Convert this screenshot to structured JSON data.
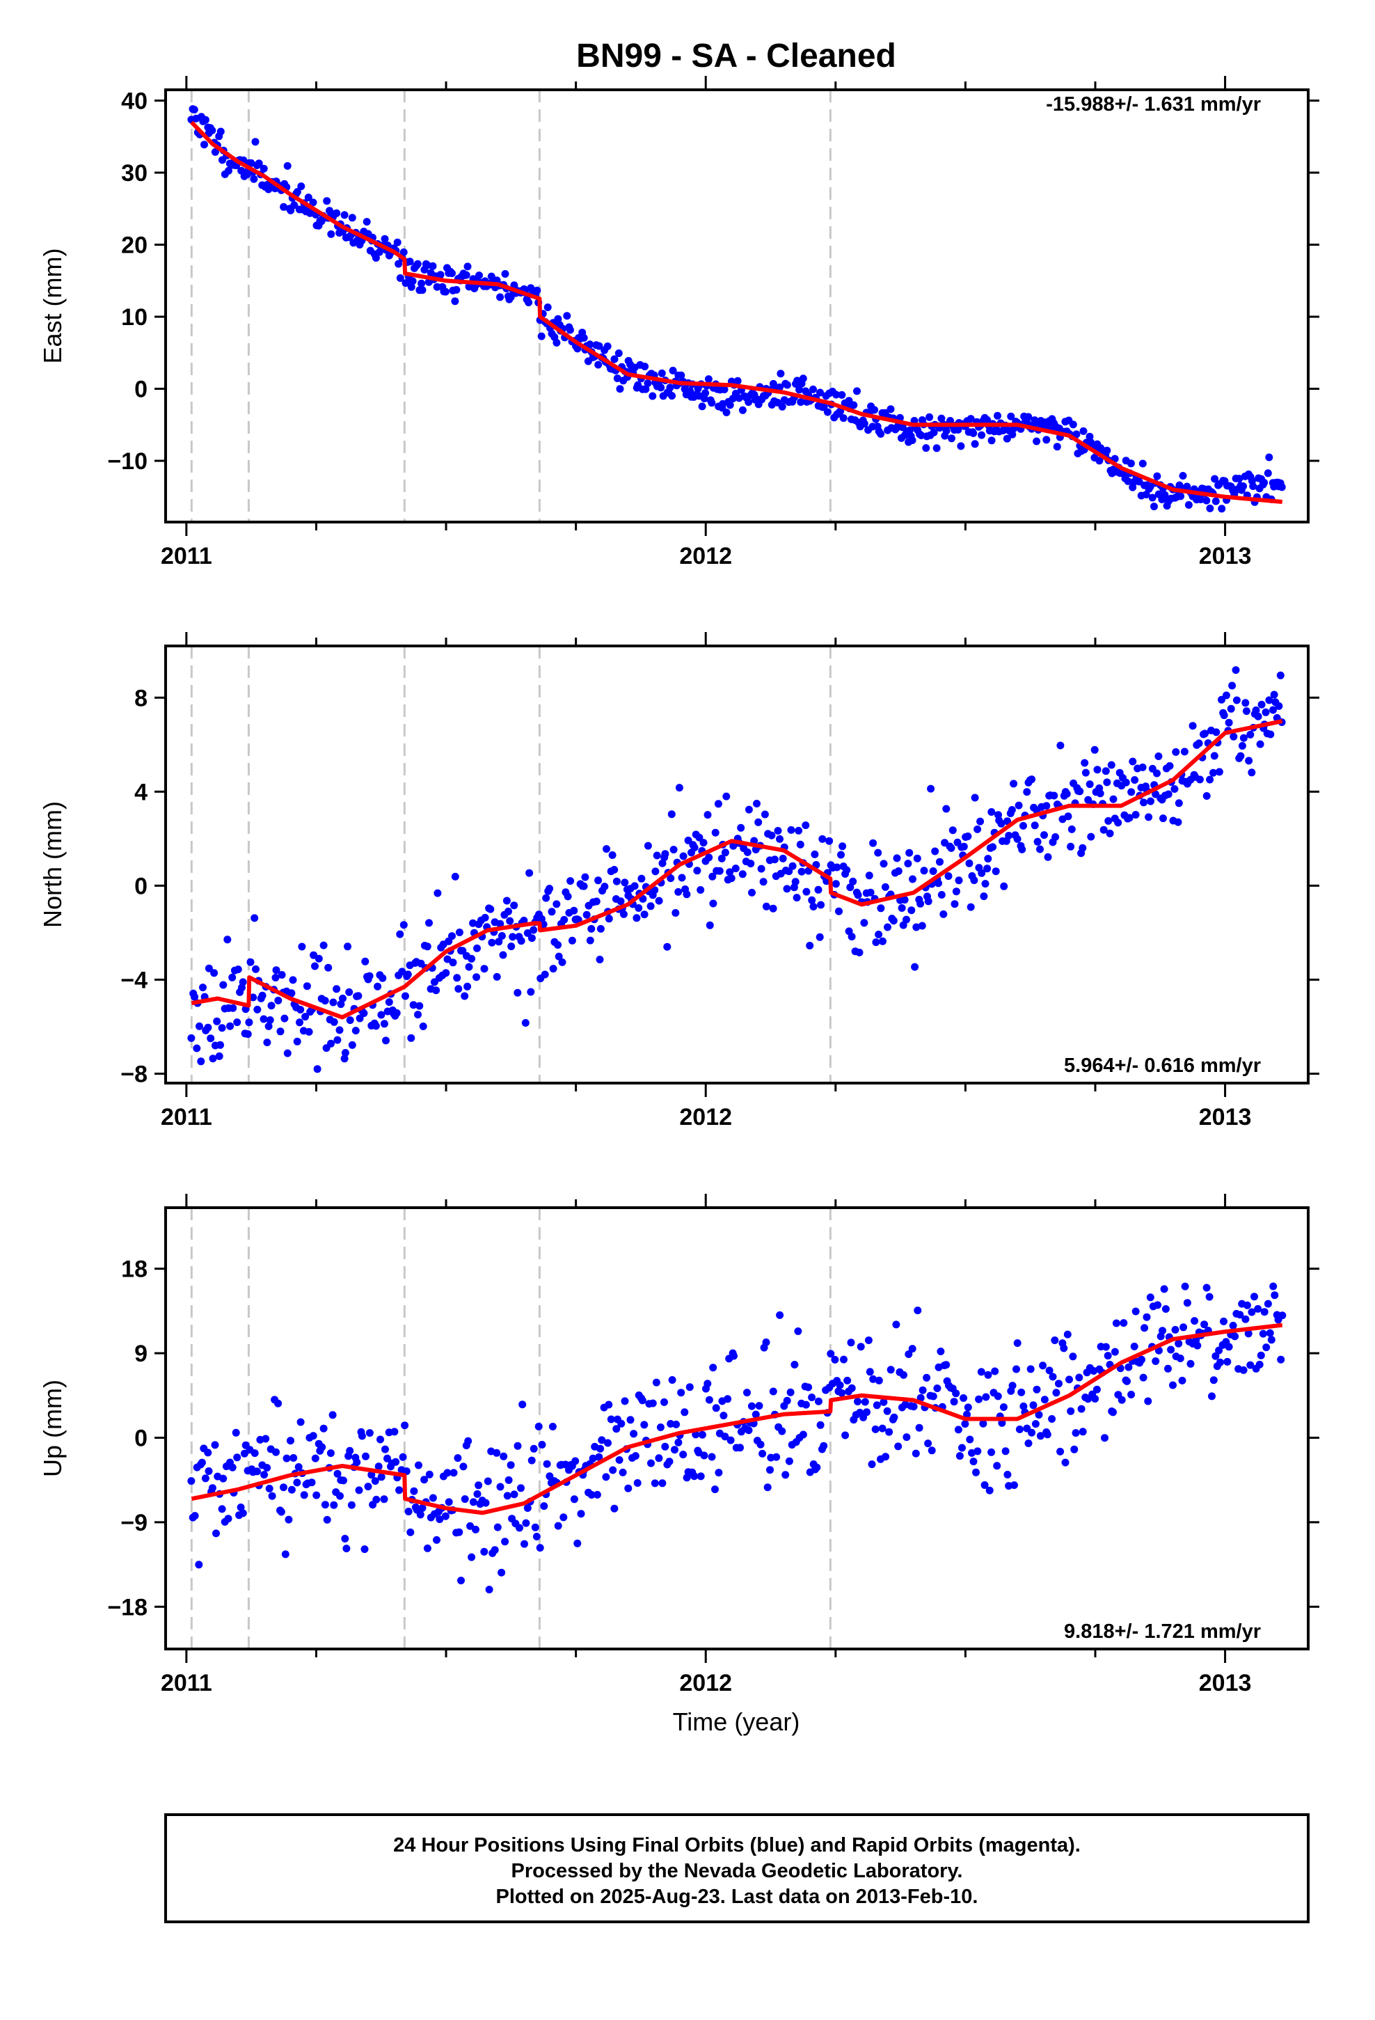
{
  "page_title": "BN99  - SA - Cleaned",
  "colors": {
    "points": "#0000ff",
    "fit": "#ff0000",
    "break_lines": "#c8c8c8",
    "frame": "#000000"
  },
  "x_label": "Time (year)",
  "footer": {
    "line1": "24 Hour Positions Using Final Orbits (blue) and Rapid Orbits (magenta).",
    "line2": "Processed by the Nevada Geodetic Laboratory.",
    "line3": "Plotted on 2025-Aug-23. Last data on 2013-Feb-10."
  },
  "chart_data": [
    {
      "id": "east",
      "type": "scatter",
      "ylabel": "East (mm)",
      "rate_text": "-15.988+/- 1.631 mm/yr",
      "rate_position": "top-right",
      "xlim": [
        2010.96,
        2013.16
      ],
      "ylim": [
        -18.5,
        41.5
      ],
      "xticks": [
        2011,
        2012,
        2013
      ],
      "xtick_labels": [
        "2011",
        "2012",
        "2013"
      ],
      "yticks": [
        40,
        30,
        20,
        10,
        0,
        -10
      ],
      "ytick_labels": [
        "40",
        "30",
        "20",
        "10",
        "0",
        "−10"
      ],
      "breaks": [
        2011.01,
        2011.12,
        2011.42,
        2011.68,
        2012.24
      ],
      "fit": {
        "name": "model",
        "x": [
          2011.01,
          2011.05,
          2011.1,
          2011.15,
          2011.2,
          2011.3,
          2011.4,
          2011.42,
          2011.421,
          2011.5,
          2011.6,
          2011.68,
          2011.681,
          2011.75,
          2011.85,
          2011.95,
          2012.05,
          2012.15,
          2012.24,
          2012.3,
          2012.4,
          2012.5,
          2012.6,
          2012.7,
          2012.8,
          2012.9,
          2013.0,
          2013.11
        ],
        "y": [
          37,
          34,
          31.5,
          29.5,
          27,
          22.5,
          19,
          18,
          16,
          15,
          14.5,
          12.5,
          10,
          6.5,
          2,
          0.8,
          0.5,
          -0.5,
          -2,
          -3.5,
          -5,
          -5,
          -5,
          -6.5,
          -11,
          -14,
          -15,
          -15.7
        ]
      },
      "points": {
        "name": "24 hour positions",
        "x_start": 2011.01,
        "x_end": 2013.11,
        "n": 680,
        "noise": 1.2,
        "seed": 11,
        "trend": {
          "x": [
            2011.01,
            2011.05,
            2011.1,
            2011.15,
            2011.2,
            2011.3,
            2011.4,
            2011.42,
            2011.421,
            2011.5,
            2011.6,
            2011.68,
            2011.681,
            2011.75,
            2011.85,
            2011.95,
            2012.05,
            2012.15,
            2012.24,
            2012.3,
            2012.4,
            2012.5,
            2012.6,
            2012.7,
            2012.8,
            2012.9,
            2013.0,
            2013.11
          ],
          "y": [
            38.5,
            34.5,
            31,
            29.5,
            27,
            22,
            19,
            18,
            16,
            15,
            14.5,
            12.5,
            10,
            7,
            2,
            0,
            -1,
            -0.5,
            -2,
            -4,
            -5.5,
            -5.5,
            -5,
            -5.5,
            -11.5,
            -15,
            -14,
            -13
          ]
        }
      }
    },
    {
      "id": "north",
      "type": "scatter",
      "ylabel": "North (mm)",
      "rate_text": "5.964+/- 0.616 mm/yr",
      "rate_position": "bottom-right",
      "xlim": [
        2010.96,
        2013.16
      ],
      "ylim": [
        -8.4,
        10.2
      ],
      "xticks": [
        2011,
        2012,
        2013
      ],
      "xtick_labels": [
        "2011",
        "2012",
        "2013"
      ],
      "yticks": [
        8,
        4,
        0,
        -4,
        -8
      ],
      "ytick_labels": [
        "8",
        "4",
        "0",
        "−4",
        "−8"
      ],
      "breaks": [
        2011.01,
        2011.12,
        2011.42,
        2011.68,
        2012.24
      ],
      "fit": {
        "name": "model",
        "x": [
          2011.01,
          2011.06,
          2011.12,
          2011.121,
          2011.2,
          2011.3,
          2011.42,
          2011.5,
          2011.58,
          2011.67,
          2011.68,
          2011.681,
          2011.75,
          2011.85,
          2011.95,
          2012.05,
          2012.15,
          2012.24,
          2012.241,
          2012.3,
          2012.4,
          2012.5,
          2012.6,
          2012.7,
          2012.8,
          2012.9,
          2013.0,
          2013.11
        ],
        "y": [
          -5,
          -4.8,
          -5.1,
          -3.9,
          -4.8,
          -5.6,
          -4.3,
          -2.8,
          -1.9,
          -1.6,
          -1.6,
          -1.9,
          -1.7,
          -0.8,
          0.9,
          1.9,
          1.5,
          0.3,
          -0.3,
          -0.8,
          -0.3,
          1.2,
          2.8,
          3.4,
          3.4,
          4.5,
          6.5,
          7
        ]
      },
      "points": {
        "name": "24 hour positions",
        "x_start": 2011.01,
        "x_end": 2013.11,
        "n": 680,
        "noise": 1.15,
        "seed": 23,
        "trend": {
          "x": [
            2011.01,
            2011.06,
            2011.12,
            2011.121,
            2011.2,
            2011.3,
            2011.42,
            2011.5,
            2011.58,
            2011.67,
            2011.68,
            2011.681,
            2011.75,
            2011.85,
            2011.95,
            2012.05,
            2012.15,
            2012.24,
            2012.241,
            2012.3,
            2012.4,
            2012.5,
            2012.6,
            2012.7,
            2012.8,
            2012.9,
            2013.0,
            2013.11
          ],
          "y": [
            -5,
            -4.8,
            -5.1,
            -3.9,
            -4.8,
            -5.6,
            -4.3,
            -2.8,
            -1.9,
            -1.6,
            -1.6,
            -1.9,
            -1.7,
            -0.8,
            0.9,
            1.9,
            1.5,
            0.3,
            -0.3,
            -0.8,
            -0.3,
            1.2,
            2.8,
            3.4,
            3.4,
            4.5,
            6.5,
            7
          ]
        }
      }
    },
    {
      "id": "up",
      "type": "scatter",
      "ylabel": "Up (mm)",
      "rate_text": "9.818+/- 1.721 mm/yr",
      "rate_position": "bottom-right",
      "xlim": [
        2010.96,
        2013.16
      ],
      "ylim": [
        -22.5,
        24.5
      ],
      "xticks": [
        2011,
        2012,
        2013
      ],
      "xtick_labels": [
        "2011",
        "2012",
        "2013"
      ],
      "yticks": [
        18,
        9,
        0,
        -9,
        -18
      ],
      "ytick_labels": [
        "18",
        "9",
        "0",
        "−9",
        "−18"
      ],
      "breaks": [
        2011.01,
        2011.12,
        2011.42,
        2011.68,
        2012.24
      ],
      "fit": {
        "name": "model",
        "x": [
          2011.01,
          2011.1,
          2011.2,
          2011.3,
          2011.42,
          2011.421,
          2011.5,
          2011.57,
          2011.65,
          2011.75,
          2011.85,
          2011.95,
          2012.05,
          2012.15,
          2012.24,
          2012.241,
          2012.3,
          2012.4,
          2012.5,
          2012.6,
          2012.7,
          2012.8,
          2012.9,
          2013.0,
          2013.11
        ],
        "y": [
          -6.5,
          -5.5,
          -4,
          -3,
          -4,
          -6.5,
          -7.5,
          -8,
          -7,
          -4,
          -1,
          0.5,
          1.5,
          2.5,
          2.8,
          4,
          4.5,
          4,
          2,
          2,
          4.5,
          8,
          10.5,
          11.3,
          12
        ]
      },
      "points": {
        "name": "24 hour positions",
        "x_start": 2011.01,
        "x_end": 2013.11,
        "n": 620,
        "noise": 3.5,
        "seed": 37,
        "trend": {
          "x": [
            2011.01,
            2011.1,
            2011.2,
            2011.3,
            2011.42,
            2011.421,
            2011.5,
            2011.57,
            2011.65,
            2011.75,
            2011.85,
            2011.95,
            2012.05,
            2012.15,
            2012.24,
            2012.241,
            2012.3,
            2012.4,
            2012.5,
            2012.6,
            2012.7,
            2012.8,
            2012.9,
            2013.0,
            2013.11
          ],
          "y": [
            -6.5,
            -5.5,
            -4,
            -3,
            -4,
            -6.5,
            -7.5,
            -8,
            -7,
            -4,
            -1,
            0.5,
            1.5,
            2.5,
            2.8,
            4,
            4.5,
            4,
            2,
            2,
            4.5,
            8,
            10.5,
            11.3,
            12
          ]
        }
      }
    }
  ]
}
